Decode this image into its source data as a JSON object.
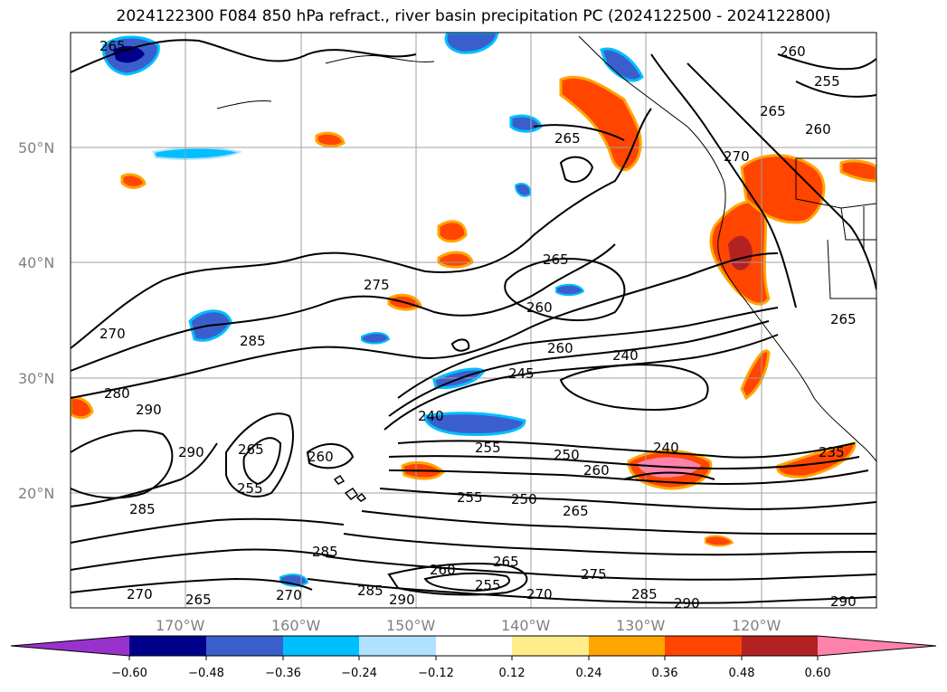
{
  "title": "2024122300 F084 850 hPa refract., river basin precipitation PC (2024122500 - 2024122800)",
  "lat_labels": [
    "50°N",
    "40°N",
    "30°N",
    "20°N"
  ],
  "lon_labels": [
    "170°W",
    "160°W",
    "150°W",
    "140°W",
    "130°W",
    "120°W"
  ],
  "contour_labels": [
    "265",
    "265",
    "260",
    "255",
    "265",
    "260",
    "270",
    "265",
    "260",
    "275",
    "270",
    "285",
    "260",
    "240",
    "245",
    "280",
    "290",
    "240",
    "255",
    "250",
    "260",
    "240",
    "235",
    "290",
    "265",
    "260",
    "255",
    "255",
    "250",
    "265",
    "285",
    "285",
    "260",
    "265",
    "255",
    "270",
    "275",
    "285",
    "290",
    "270",
    "265",
    "270",
    "290",
    "285",
    "290",
    "265"
  ],
  "colorbar": {
    "ticks": [
      "−0.60",
      "−0.48",
      "−0.36",
      "−0.24",
      "−0.12",
      "0.12",
      "0.24",
      "0.36",
      "0.48",
      "0.60"
    ],
    "colors": [
      "#9932cc",
      "#00008b",
      "#3a5fcd",
      "#00bfff",
      "#b0e2ff",
      "#ffffff",
      "#ffec8b",
      "#ffa500",
      "#ff4500",
      "#b22222",
      "#ff82ab"
    ]
  },
  "colors": {
    "grid": "#a0a0a0",
    "coast": "#000000"
  }
}
